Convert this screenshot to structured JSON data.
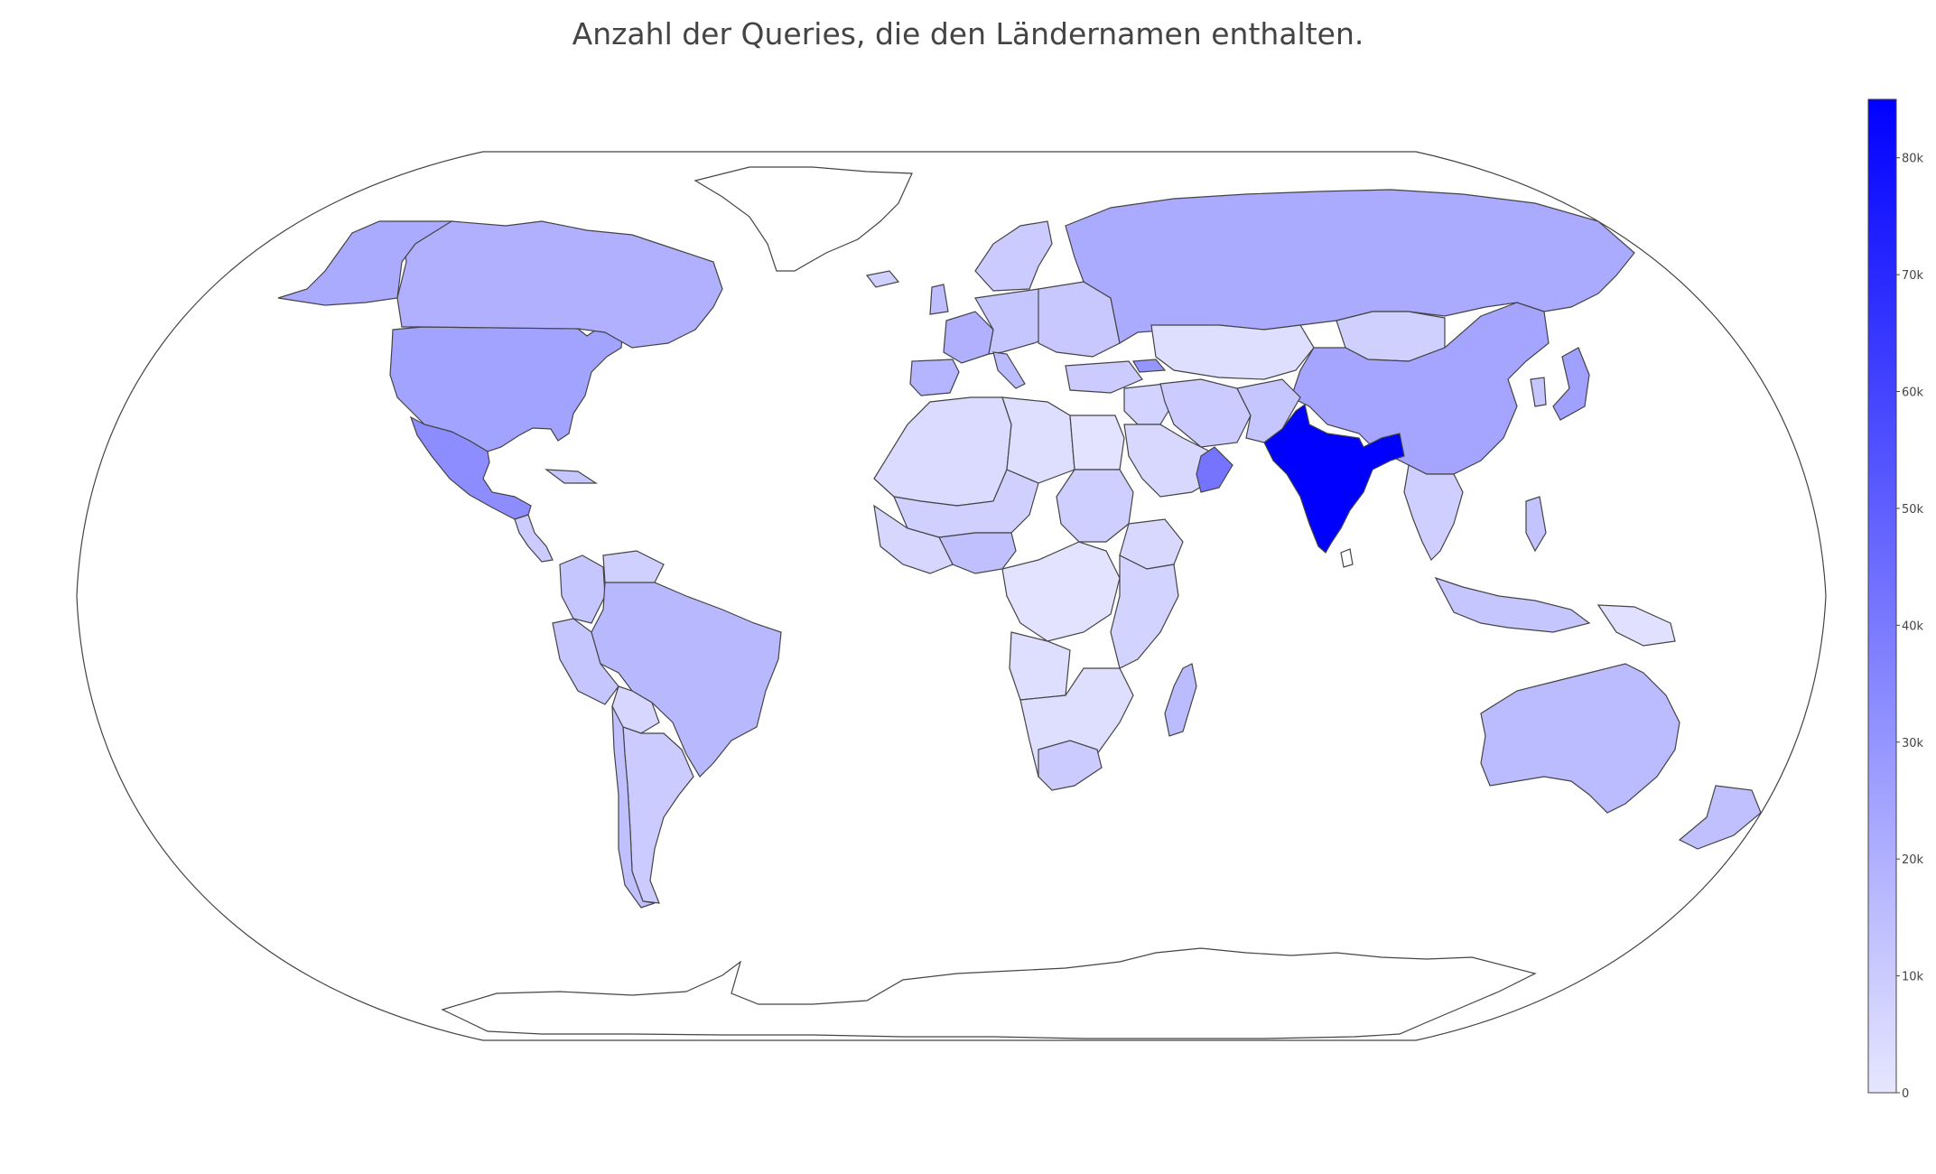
{
  "title": "Anzahl der Queries, die den Ländernamen enthalten.",
  "chart_data": {
    "type": "choropleth",
    "projection": "robinson",
    "color_scale": {
      "from": "#e6e6ff",
      "to": "#0000ff",
      "range": [
        0,
        85000
      ]
    },
    "colorbar": {
      "ticks": [
        {
          "value": 0,
          "label": "0"
        },
        {
          "value": 10000,
          "label": "10k"
        },
        {
          "value": 20000,
          "label": "20k"
        },
        {
          "value": 30000,
          "label": "30k"
        },
        {
          "value": 40000,
          "label": "40k"
        },
        {
          "value": 50000,
          "label": "50k"
        },
        {
          "value": 60000,
          "label": "60k"
        },
        {
          "value": 70000,
          "label": "70k"
        },
        {
          "value": 80000,
          "label": "80k"
        }
      ]
    },
    "regions": [
      {
        "name": "India",
        "value": 85000
      },
      {
        "name": "Mexico",
        "value": 33000
      },
      {
        "name": "Oman",
        "value": 42000
      },
      {
        "name": "Georgia",
        "value": 30000
      },
      {
        "name": "United States",
        "value": 25000
      },
      {
        "name": "Canada",
        "value": 20000
      },
      {
        "name": "Russia",
        "value": 22000
      },
      {
        "name": "China",
        "value": 24000
      },
      {
        "name": "Japan",
        "value": 26000
      },
      {
        "name": "Brazil",
        "value": 17000
      },
      {
        "name": "Australia",
        "value": 16000
      },
      {
        "name": "France",
        "value": 20000
      },
      {
        "name": "Spain",
        "value": 18000
      },
      {
        "name": "Mongolia",
        "value": 8000
      },
      {
        "name": "Kazakhstan",
        "value": 3000
      },
      {
        "name": "Argentina",
        "value": 10000
      },
      {
        "name": "Chile",
        "value": 14000
      },
      {
        "name": "Peru",
        "value": 12000
      },
      {
        "name": "Colombia",
        "value": 12000
      },
      {
        "name": "Nigeria",
        "value": 14000
      },
      {
        "name": "Sudan",
        "value": 9000
      },
      {
        "name": "Mali",
        "value": 13000
      },
      {
        "name": "Algeria",
        "value": 4000
      },
      {
        "name": "Libya",
        "value": 3000
      },
      {
        "name": "Egypt",
        "value": 1000
      },
      {
        "name": "Saudi Arabia",
        "value": 5000
      },
      {
        "name": "Iran",
        "value": 10000
      },
      {
        "name": "South Africa",
        "value": 10000
      },
      {
        "name": "Madagascar",
        "value": 16000
      },
      {
        "name": "Indonesia",
        "value": 12000
      },
      {
        "name": "New Zealand",
        "value": 14000
      },
      {
        "name": "Greenland",
        "value": 0
      },
      {
        "name": "Antarctica",
        "value": 0
      }
    ]
  }
}
